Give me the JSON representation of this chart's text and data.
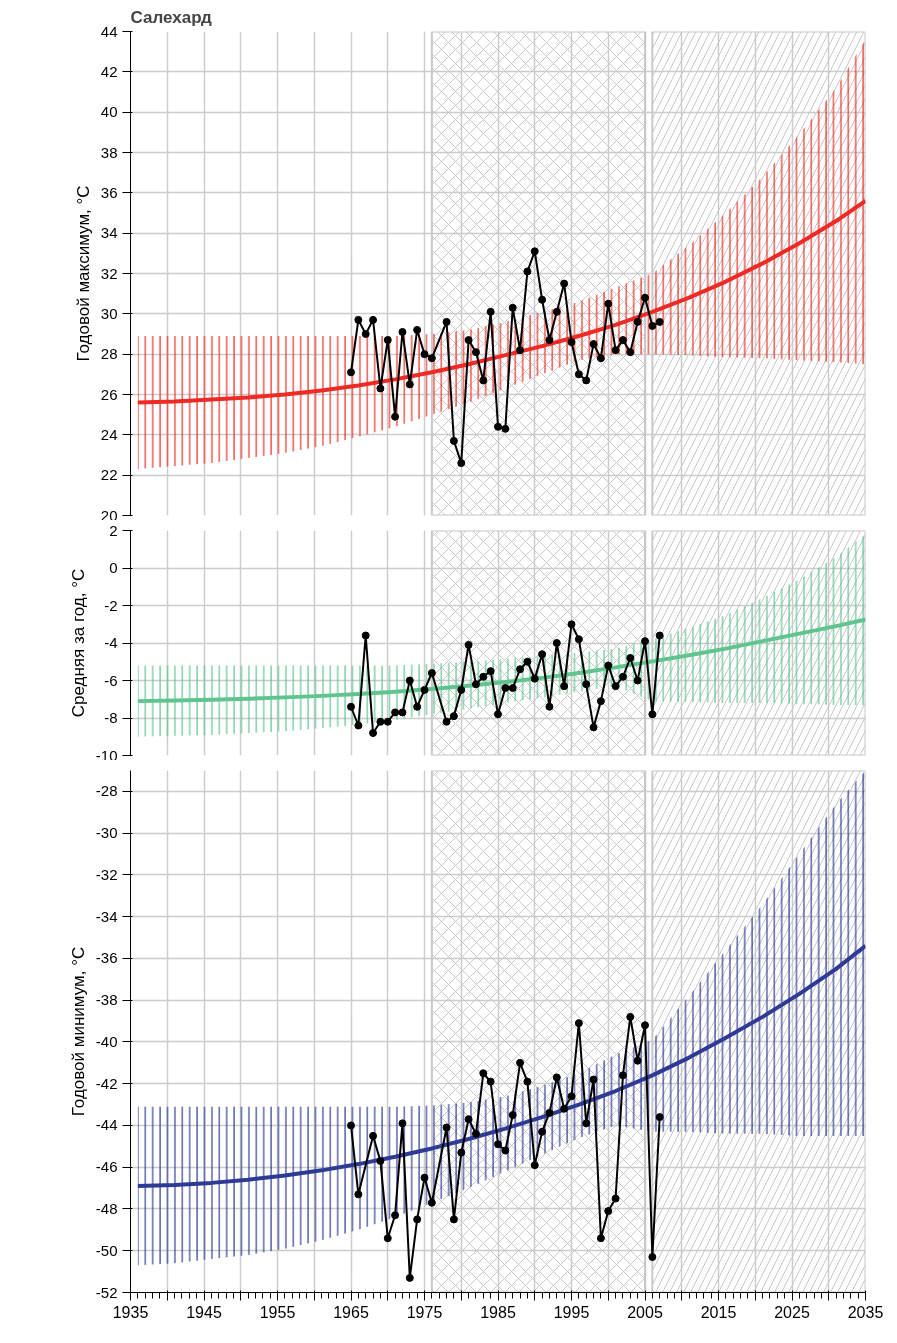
{
  "chart_data": [
    {
      "type": "line",
      "title": "Салехард",
      "ylabel": "Годовой максимум, °C",
      "xlim": [
        1935,
        2035
      ],
      "ylim": [
        20,
        44
      ],
      "xticks": [
        1935,
        {
          "value": 1940,
          "label": null
        },
        1945,
        {
          "value": 1950,
          "label": null
        },
        1955,
        {
          "value": 1960,
          "label": null
        },
        1965,
        {
          "value": 1970,
          "label": null
        },
        1975,
        {
          "value": 1980,
          "label": null
        },
        1985,
        {
          "value": 1990,
          "label": null
        },
        1995,
        {
          "value": 2000,
          "label": null
        },
        2005,
        {
          "value": 2010,
          "label": null
        },
        2015,
        {
          "value": 2020,
          "label": null
        },
        2025,
        {
          "value": 2030,
          "label": null
        },
        2035
      ],
      "yticks": [
        20,
        22,
        24,
        26,
        28,
        30,
        32,
        34,
        36,
        38,
        40,
        42,
        44
      ],
      "tick_labels": "y",
      "grid": true,
      "bands": [
        {
          "axis": "x",
          "from": 1976,
          "to": 2005,
          "label": null,
          "color": "#c8c8c8"
        },
        {
          "axis": "x",
          "from": 2006,
          "to": 2035,
          "label": null,
          "color": "#c8c8c8"
        }
      ],
      "series": [
        {
          "color": "#ee2a24",
          "marker": "none",
          "x": [
            1936,
            1941,
            1946,
            1951,
            1956,
            1961,
            1966,
            1971,
            1976,
            1981,
            1986,
            1991,
            1996,
            2001,
            2006,
            2011,
            2016,
            2021,
            2026,
            2031,
            2035
          ],
          "values": [
            25.6,
            25.65,
            25.75,
            25.85,
            26.0,
            26.2,
            26.45,
            26.75,
            27.1,
            27.5,
            27.95,
            28.4,
            28.9,
            29.45,
            30.1,
            30.8,
            31.6,
            32.5,
            33.5,
            34.6,
            35.6
          ],
          "lower": [
            22.3,
            22.45,
            22.6,
            22.85,
            23.1,
            23.45,
            23.9,
            24.4,
            25.0,
            25.6,
            26.3,
            27.0,
            27.7,
            28.0,
            28.0,
            27.95,
            27.85,
            27.8,
            27.7,
            27.6,
            27.5
          ],
          "upper": [
            28.9,
            28.9,
            28.9,
            28.9,
            28.9,
            28.9,
            28.9,
            28.9,
            29.0,
            29.2,
            29.6,
            30.1,
            30.6,
            31.3,
            32.0,
            33.4,
            35.0,
            36.8,
            38.9,
            41.2,
            43.6
          ]
        },
        {
          "type": "line",
          "color": "#000000",
          "marker": "circle",
          "x": [
            1965,
            1966,
            1967,
            1968,
            1969,
            1970,
            1971,
            1972,
            1973,
            1974,
            1975,
            1976,
            1978,
            1979,
            1980,
            1981,
            1982,
            1983,
            1984,
            1985,
            1986,
            1987,
            1988,
            1989,
            1990,
            1991,
            1992,
            1993,
            1994,
            1995,
            1996,
            1997,
            1998,
            1999,
            2000,
            2001,
            2002,
            2003,
            2004,
            2005,
            2006,
            2007
          ],
          "values": [
            27.1,
            29.7,
            29.0,
            29.7,
            26.3,
            28.7,
            24.9,
            29.1,
            26.5,
            29.2,
            28.0,
            27.8,
            29.6,
            23.7,
            22.6,
            28.7,
            28.1,
            26.7,
            30.1,
            24.4,
            24.3,
            30.3,
            28.2,
            32.1,
            33.1,
            30.7,
            28.7,
            30.1,
            31.5,
            28.6,
            27.0,
            26.7,
            28.5,
            27.8,
            30.5,
            28.2,
            28.7,
            28.1,
            29.6,
            30.8,
            29.4,
            29.6
          ]
        }
      ]
    },
    {
      "type": "line",
      "ylabel": "Средняя за год, °C",
      "xlim": [
        1935,
        2035
      ],
      "ylim": [
        -10,
        2
      ],
      "xticks": [
        1935,
        {
          "value": 1940,
          "label": null
        },
        1945,
        {
          "value": 1950,
          "label": null
        },
        1955,
        {
          "value": 1960,
          "label": null
        },
        1965,
        {
          "value": 1970,
          "label": null
        },
        1975,
        {
          "value": 1980,
          "label": null
        },
        1985,
        {
          "value": 1990,
          "label": null
        },
        1995,
        {
          "value": 2000,
          "label": null
        },
        2005,
        {
          "value": 2010,
          "label": null
        },
        2015,
        {
          "value": 2020,
          "label": null
        },
        2025,
        {
          "value": 2030,
          "label": null
        },
        2035
      ],
      "yticks": [
        -10,
        -8,
        -6,
        -4,
        -2,
        0,
        2
      ],
      "tick_labels": "y",
      "grid": true,
      "bands": [
        {
          "axis": "x",
          "from": 1976,
          "to": 2005,
          "label": null,
          "color": "#c8c8c8"
        },
        {
          "axis": "x",
          "from": 2006,
          "to": 2035,
          "label": null,
          "color": "#c8c8c8"
        }
      ],
      "series": [
        {
          "color": "#5fc48e",
          "marker": "none",
          "x": [
            1936,
            1941,
            1946,
            1951,
            1956,
            1961,
            1966,
            1971,
            1976,
            1981,
            1986,
            1991,
            1996,
            2001,
            2006,
            2011,
            2016,
            2021,
            2026,
            2031,
            2035
          ],
          "values": [
            -7.1,
            -7.07,
            -7.03,
            -6.97,
            -6.9,
            -6.82,
            -6.72,
            -6.6,
            -6.45,
            -6.28,
            -6.08,
            -5.86,
            -5.6,
            -5.3,
            -4.98,
            -4.65,
            -4.3,
            -3.9,
            -3.5,
            -3.1,
            -2.75
          ],
          "lower": [
            -9.0,
            -8.95,
            -8.9,
            -8.8,
            -8.7,
            -8.55,
            -8.35,
            -8.1,
            -7.8,
            -7.5,
            -7.2,
            -6.9,
            -6.6,
            -6.3,
            -7.1,
            -7.15,
            -7.2,
            -7.2,
            -7.25,
            -7.3,
            -7.3
          ],
          "upper": [
            -5.2,
            -5.2,
            -5.2,
            -5.2,
            -5.2,
            -5.2,
            -5.2,
            -5.2,
            -5.1,
            -5.0,
            -4.85,
            -4.7,
            -4.5,
            -4.3,
            -3.8,
            -3.2,
            -2.5,
            -1.6,
            -0.6,
            0.6,
            1.8
          ]
        },
        {
          "type": "line",
          "color": "#000000",
          "marker": "circle",
          "x": [
            1965,
            1966,
            1967,
            1968,
            1969,
            1970,
            1971,
            1972,
            1973,
            1974,
            1975,
            1976,
            1978,
            1979,
            1980,
            1981,
            1982,
            1983,
            1984,
            1985,
            1986,
            1987,
            1988,
            1989,
            1990,
            1991,
            1992,
            1993,
            1994,
            1995,
            1996,
            1997,
            1998,
            1999,
            2000,
            2001,
            2002,
            2003,
            2004,
            2005,
            2006,
            2007
          ],
          "values": [
            -7.4,
            -8.4,
            -3.6,
            -8.8,
            -8.2,
            -8.2,
            -7.7,
            -7.7,
            -6.0,
            -7.4,
            -6.5,
            -5.6,
            -8.2,
            -7.9,
            -6.5,
            -4.1,
            -6.2,
            -5.8,
            -5.5,
            -7.8,
            -6.4,
            -6.4,
            -5.4,
            -5.0,
            -5.9,
            -4.6,
            -7.4,
            -4.0,
            -6.3,
            -3.0,
            -3.8,
            -6.2,
            -8.5,
            -7.1,
            -5.2,
            -6.3,
            -5.8,
            -4.8,
            -6.0,
            -3.9,
            -7.8,
            -3.6
          ]
        }
      ]
    },
    {
      "type": "line",
      "ylabel": "Годовой минимум, °C",
      "xlim": [
        1935,
        2035
      ],
      "ylim": [
        -52,
        -27
      ],
      "xticks": [
        1935,
        {
          "value": 1940,
          "label": null
        },
        1945,
        {
          "value": 1950,
          "label": null
        },
        1955,
        {
          "value": 1960,
          "label": null
        },
        1965,
        {
          "value": 1970,
          "label": null
        },
        1975,
        {
          "value": 1980,
          "label": null
        },
        1985,
        {
          "value": 1990,
          "label": null
        },
        1995,
        {
          "value": 2000,
          "label": null
        },
        2005,
        {
          "value": 2010,
          "label": null
        },
        2015,
        {
          "value": 2020,
          "label": null
        },
        2025,
        {
          "value": 2030,
          "label": null
        },
        2035
      ],
      "yticks": [
        -52,
        -50,
        -48,
        -46,
        -44,
        -42,
        -40,
        -38,
        -36,
        -34,
        -32,
        -30,
        -28
      ],
      "grid": true,
      "bands": [
        {
          "axis": "x",
          "from": 1976,
          "to": 2005,
          "label": null,
          "color": "#c8c8c8"
        },
        {
          "axis": "x",
          "from": 2006,
          "to": 2035,
          "label": null,
          "color": "#c8c8c8"
        }
      ],
      "series": [
        {
          "color": "#2e3a96",
          "marker": "none",
          "x": [
            1936,
            1941,
            1946,
            1951,
            1956,
            1961,
            1966,
            1971,
            1976,
            1981,
            1986,
            1991,
            1996,
            2001,
            2006,
            2011,
            2016,
            2021,
            2026,
            2031,
            2035
          ],
          "values": [
            -46.9,
            -46.85,
            -46.75,
            -46.6,
            -46.4,
            -46.15,
            -45.85,
            -45.5,
            -45.1,
            -44.65,
            -44.15,
            -43.6,
            -43.0,
            -42.35,
            -41.6,
            -40.75,
            -39.8,
            -38.8,
            -37.7,
            -36.5,
            -35.4
          ],
          "lower": [
            -50.7,
            -50.6,
            -50.4,
            -50.2,
            -49.9,
            -49.5,
            -49.0,
            -48.4,
            -47.7,
            -47.0,
            -46.2,
            -45.4,
            -44.6,
            -44.0,
            -44.3,
            -44.3,
            -44.4,
            -44.4,
            -44.5,
            -44.5,
            -44.5
          ],
          "upper": [
            -43.1,
            -43.1,
            -43.1,
            -43.1,
            -43.1,
            -43.1,
            -43.1,
            -43.1,
            -43.05,
            -42.9,
            -42.6,
            -42.1,
            -41.5,
            -40.6,
            -39.9,
            -37.8,
            -35.6,
            -33.4,
            -31.0,
            -28.6,
            -27.0
          ]
        },
        {
          "type": "line",
          "color": "#000000",
          "marker": "circle",
          "x": [
            1965,
            1966,
            1968,
            1969,
            1970,
            1971,
            1972,
            1973,
            1974,
            1975,
            1976,
            1978,
            1979,
            1980,
            1981,
            1982,
            1983,
            1984,
            1985,
            1986,
            1987,
            1988,
            1989,
            1990,
            1991,
            1992,
            1993,
            1994,
            1995,
            1996,
            1997,
            1998,
            1999,
            2000,
            2001,
            2002,
            2003,
            2004,
            2005,
            2006,
            2007
          ],
          "values": [
            -44.0,
            -47.3,
            -44.5,
            -45.7,
            -49.4,
            -48.3,
            -43.9,
            -51.3,
            -48.5,
            -46.5,
            -47.7,
            -44.1,
            -48.5,
            -45.3,
            -43.7,
            -44.4,
            -41.5,
            -41.9,
            -44.9,
            -45.2,
            -43.5,
            -41.0,
            -41.9,
            -45.9,
            -44.3,
            -43.4,
            -41.7,
            -43.2,
            -42.6,
            -39.1,
            -43.9,
            -41.8,
            -49.4,
            -48.1,
            -47.5,
            -41.6,
            -38.8,
            -40.9,
            -39.2,
            -50.3,
            -43.6
          ]
        }
      ]
    }
  ]
}
